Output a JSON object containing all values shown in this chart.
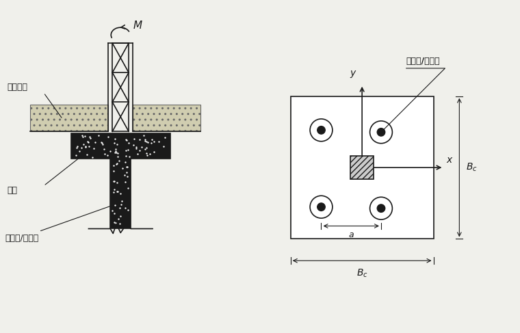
{
  "bg_color": "#f0f0eb",
  "line_color": "#1a1a1a",
  "fill_dark": "#1a1a1a",
  "fig_width": 7.6,
  "fig_height": 4.87,
  "dpi": 100,
  "label_natural_ground": "自然地面",
  "label_pile_cap": "承台",
  "label_pile_left": "预制桩/钢管桩",
  "label_pile_right": "预制桩/钢管桩"
}
